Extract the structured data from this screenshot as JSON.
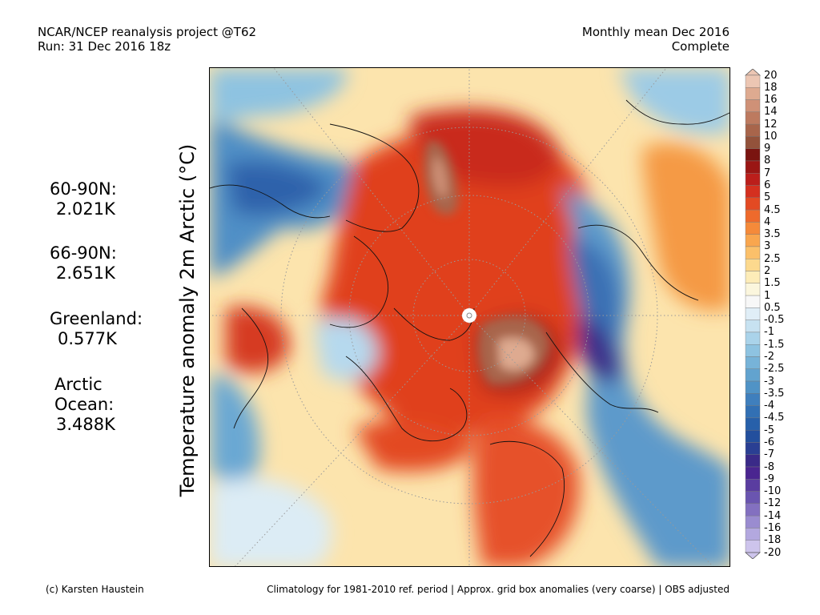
{
  "header": {
    "left_line1": "NCAR/NCEP reanalysis project @T62",
    "left_line2": "Run: 31 Dec 2016 18z",
    "right_line1": "Monthly mean Dec 2016",
    "right_line2": "Complete"
  },
  "stats": [
    {
      "label": "60-90N:",
      "value": "2.021K"
    },
    {
      "label": "66-90N:",
      "value": "2.651K"
    },
    {
      "label": "Greenland:",
      "value": "0.577K"
    },
    {
      "label": "Arctic",
      "label2": "Ocean:",
      "value": "3.488K"
    }
  ],
  "ylabel": "Temperature anomaly 2m Arctic (°C)",
  "colorbar": {
    "levels": [
      "20",
      "18",
      "16",
      "14",
      "12",
      "10",
      "9",
      "8",
      "7",
      "6",
      "5",
      "4.5",
      "4",
      "3.5",
      "3",
      "2.5",
      "2",
      "1.5",
      "1",
      "0.5",
      "-0.5",
      "-1",
      "-1.5",
      "-2",
      "-2.5",
      "-3",
      "-3.5",
      "-4",
      "-4.5",
      "-5",
      "-6",
      "-7",
      "-8",
      "-9",
      "-10",
      "-12",
      "-14",
      "-16",
      "-18",
      "-20"
    ],
    "colors": [
      "#ecc6b3",
      "#deaa90",
      "#cf9177",
      "#bd7a5f",
      "#a8654b",
      "#93523b",
      "#7a1410",
      "#9a1614",
      "#bb1e1b",
      "#d4301f",
      "#e34a23",
      "#ee6a2c",
      "#f58a3a",
      "#f9a64e",
      "#fbc06a",
      "#fcd98e",
      "#fdecb8",
      "#fbf6dd",
      "#f7f7f7",
      "#e0eef7",
      "#c7e2f1",
      "#aad3ea",
      "#8ec3e1",
      "#77b3d8",
      "#62a3cf",
      "#5093c6",
      "#3f7fbd",
      "#3270b4",
      "#2760aa",
      "#234f9d",
      "#2a3f93",
      "#3a2a88",
      "#4a2590",
      "#5a3da0",
      "#6a55b0",
      "#8370c0",
      "#9a8cd0",
      "#b3a8df",
      "#cdc4ec"
    ]
  },
  "footer": {
    "left": "(c) Karsten Haustein",
    "right": "Climatology for 1981-2010 ref. period | Approx. grid box anomalies (very coarse) | OBS adjusted"
  }
}
